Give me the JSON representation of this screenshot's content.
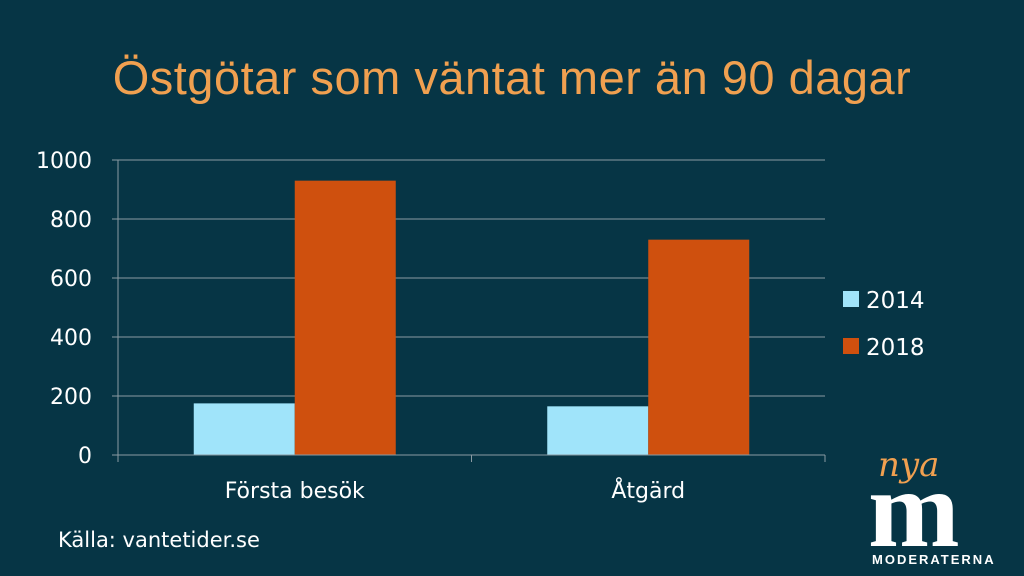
{
  "title": "Östgötar som väntat mer än 90 dagar",
  "source": "Källa: vantetider.se",
  "logo": {
    "script_text": "nya",
    "letter": "m",
    "wordmark": "MODERATERNA"
  },
  "colors": {
    "background": "#063545",
    "title": "#F0A050",
    "series_2014": "#A0E4FA",
    "series_2018": "#CF500E",
    "text": "#FFFFFF",
    "grid": "#8A9AA2"
  },
  "chart_data": {
    "type": "bar",
    "title": "",
    "xlabel": "",
    "ylabel": "",
    "categories": [
      "Första besök",
      "Åtgärd"
    ],
    "series": [
      {
        "name": "2014",
        "values": [
          175,
          165
        ]
      },
      {
        "name": "2018",
        "values": [
          930,
          730
        ]
      }
    ],
    "ylim": [
      0,
      1000
    ],
    "yticks": [
      0,
      200,
      400,
      600,
      800,
      1000
    ],
    "grid": true,
    "legend": "right"
  }
}
